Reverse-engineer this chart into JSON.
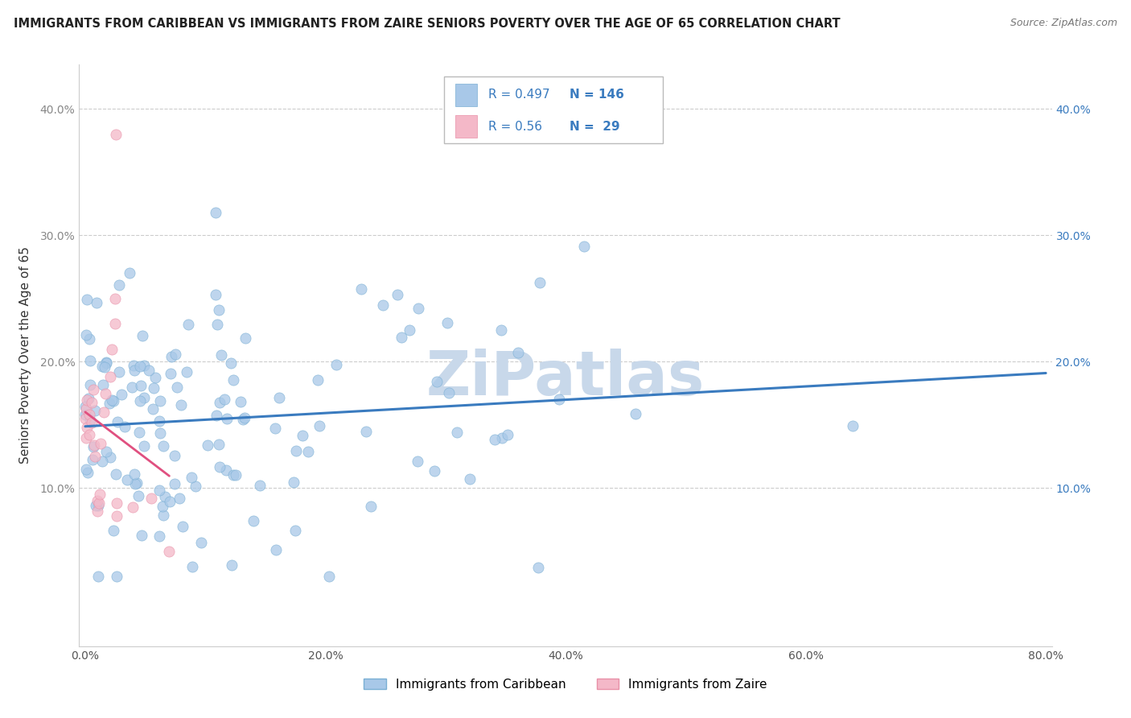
{
  "title": "IMMIGRANTS FROM CARIBBEAN VS IMMIGRANTS FROM ZAIRE SENIORS POVERTY OVER THE AGE OF 65 CORRELATION CHART",
  "source": "Source: ZipAtlas.com",
  "ylabel": "Seniors Poverty Over the Age of 65",
  "xlim": [
    -0.005,
    0.805
  ],
  "ylim": [
    -0.025,
    0.435
  ],
  "xticks": [
    0.0,
    0.1,
    0.2,
    0.3,
    0.4,
    0.5,
    0.6,
    0.7,
    0.8
  ],
  "xticklabels": [
    "0.0%",
    "",
    "20.0%",
    "",
    "40.0%",
    "",
    "60.0%",
    "",
    "80.0%"
  ],
  "yticks": [
    0.1,
    0.2,
    0.3,
    0.4
  ],
  "yticklabels": [
    "10.0%",
    "20.0%",
    "30.0%",
    "40.0%"
  ],
  "caribbean_R": 0.497,
  "caribbean_N": 146,
  "zaire_R": 0.56,
  "zaire_N": 29,
  "blue_scatter_color": "#a8c8e8",
  "blue_scatter_edge": "#7aafd4",
  "blue_line_color": "#3a7bbf",
  "pink_scatter_color": "#f4b8c8",
  "pink_scatter_edge": "#e890a8",
  "pink_line_color": "#e05080",
  "watermark": "ZiPatlas",
  "watermark_color": "#c8d8ea",
  "background_color": "#ffffff",
  "grid_color": "#cccccc",
  "title_fontsize": 10.5,
  "source_fontsize": 9,
  "axis_label_fontsize": 11,
  "tick_fontsize": 10,
  "legend_fontsize": 11
}
